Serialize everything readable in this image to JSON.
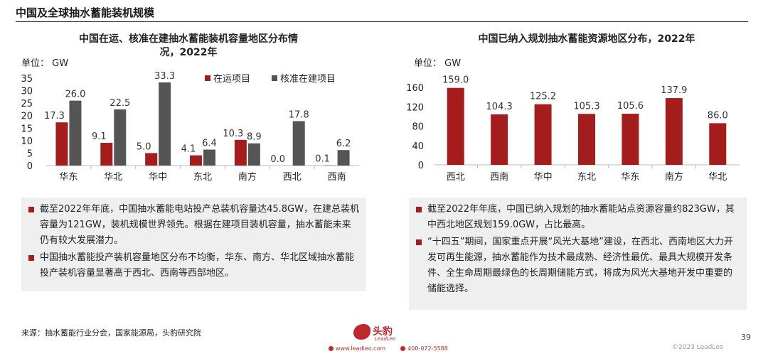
{
  "page": {
    "title": "中国及全球抽水蓄能装机规模",
    "page_number": "39",
    "copyright": "©2023 LeadLeo",
    "source": "来源：抽水蓄能行业分会，国家能源局，头豹研究院"
  },
  "logo": {
    "name": "头豹",
    "sub": "LeadLeo",
    "website": "www.leadleo.com",
    "phone": "400-072-5588"
  },
  "colors": {
    "accent_red": "#a51c1c",
    "dark_gray": "#555555",
    "note_bg": "#efefef"
  },
  "left_chart": {
    "title_line1": "中国在运、核准在建抽水蓄能装机容量地区分布情",
    "title_line2": "况，2022年",
    "unit": "单位： GW"
  },
  "right_chart": {
    "title": "中国已纳入规划抽水蓄能资源地区分布，2022年",
    "unit": "单位： GW"
  },
  "chart_data": [
    {
      "type": "bar",
      "title": "中国在运、核准在建抽水蓄能装机容量地区分布情况，2022年",
      "ylabel": "单位： GW",
      "categories": [
        "华东",
        "华北",
        "华中",
        "东北",
        "南方",
        "西北",
        "西南"
      ],
      "series": [
        {
          "name": "在运项目",
          "color": "#a51c1c",
          "values": [
            17.3,
            9.1,
            5.0,
            4.1,
            10.3,
            0.0,
            0.1
          ],
          "labels": [
            "17.3",
            "9.1",
            "5.0",
            "4.1",
            "10.3",
            "0.0",
            "0.1"
          ]
        },
        {
          "name": "核准在建项目",
          "color": "#555555",
          "values": [
            26.0,
            22.5,
            33.3,
            6.4,
            8.9,
            17.8,
            6.2
          ],
          "labels": [
            "26.0",
            "22.5",
            "33.3",
            "6.4",
            "8.9",
            "17.8",
            "6.2"
          ]
        }
      ],
      "ylim": [
        0,
        35
      ],
      "yticks": [
        0,
        5,
        10,
        15,
        20,
        25,
        30,
        35
      ],
      "legend": "top-right",
      "grid": false
    },
    {
      "type": "bar",
      "title": "中国已纳入规划抽水蓄能资源地区分布，2022年",
      "ylabel": "单位： GW",
      "categories": [
        "西北",
        "西南",
        "华中",
        "东北",
        "华东",
        "南方",
        "华北"
      ],
      "values": [
        159.0,
        104.3,
        125.2,
        105.3,
        105.6,
        137.9,
        86.0
      ],
      "labels": [
        "159.0",
        "104.3",
        "125.2",
        "105.3",
        "105.6",
        "137.9",
        "86.0"
      ],
      "color": "#a51c1c",
      "ylim": [
        0,
        160
      ],
      "yticks": [
        0,
        40,
        80,
        120,
        160
      ],
      "grid": false
    }
  ],
  "notes_left": [
    {
      "text": "截至2022年年底，中国抽水蓄能电站投产总装机容量达45.8GW，在建总装机容量为121GW，装机规模世界领先。根据在建项目装机容量，抽水蓄能未来仍有较大发展潜力。"
    },
    {
      "text": "中国抽水蓄能投产装机容量地区分布不均衡，华东、南方、华北区域抽水蓄能投产装机容量显著高于西北、西南等西部地区。"
    }
  ],
  "notes_right": [
    {
      "text": "截至2022年年底，中国已纳入规划的抽水蓄能站点资源容量约823GW，其中西北地区规划159.0GW，占比最高。"
    },
    {
      "text": "“十四五”期间，国家重点开展“风光大基地”建设，在西北、西南地区大力开发可再生能源，抽水蓄能作为技术最成熟、经济性最优、最具大规模开发条件、全生命周期最绿色的长周期储能方式，将成为风光大基地开发中重要的储能选择。"
    }
  ]
}
